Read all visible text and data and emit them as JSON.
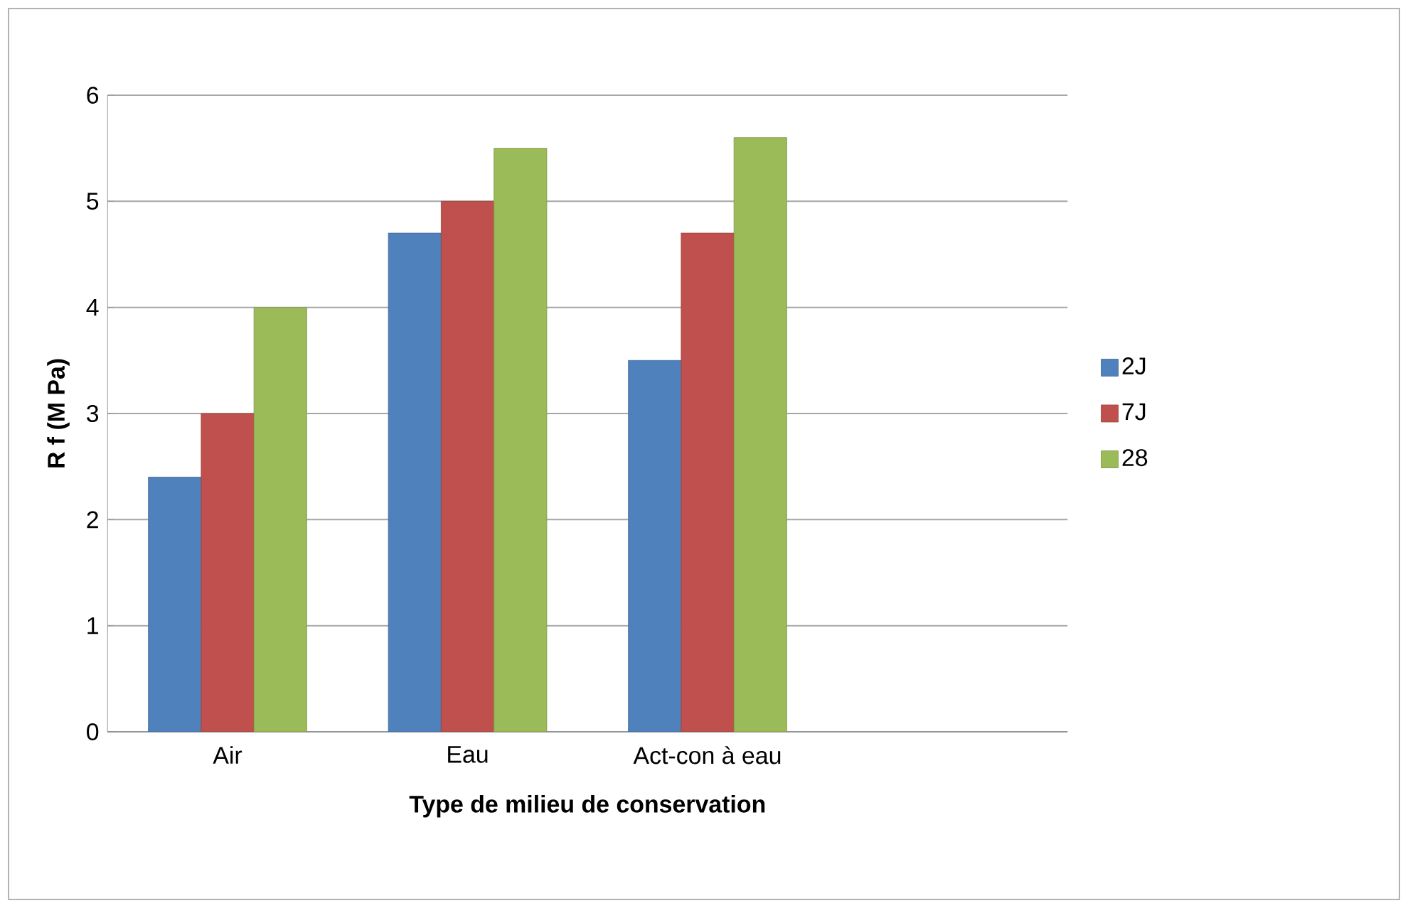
{
  "chart_data": {
    "type": "bar",
    "xlabel": "Type de milieu de conservation",
    "ylabel": "R f (M Pa)",
    "categories": [
      "Air",
      "Eau",
      "Act-con à eau",
      null
    ],
    "series": [
      {
        "name": "2J",
        "color": "#4f81bd",
        "values": [
          2.4,
          4.7,
          3.5,
          null
        ]
      },
      {
        "name": "7J",
        "color": "#c0504d",
        "values": [
          3,
          5,
          4.7,
          null
        ]
      },
      {
        "name": "28",
        "color": "#9bbb59",
        "values": [
          4,
          5.5,
          5.6,
          null
        ]
      }
    ],
    "ylim": [
      0,
      6
    ],
    "yticks": [
      0,
      1,
      2,
      3,
      4,
      5,
      6
    ],
    "grid": "y",
    "legend": "right"
  }
}
